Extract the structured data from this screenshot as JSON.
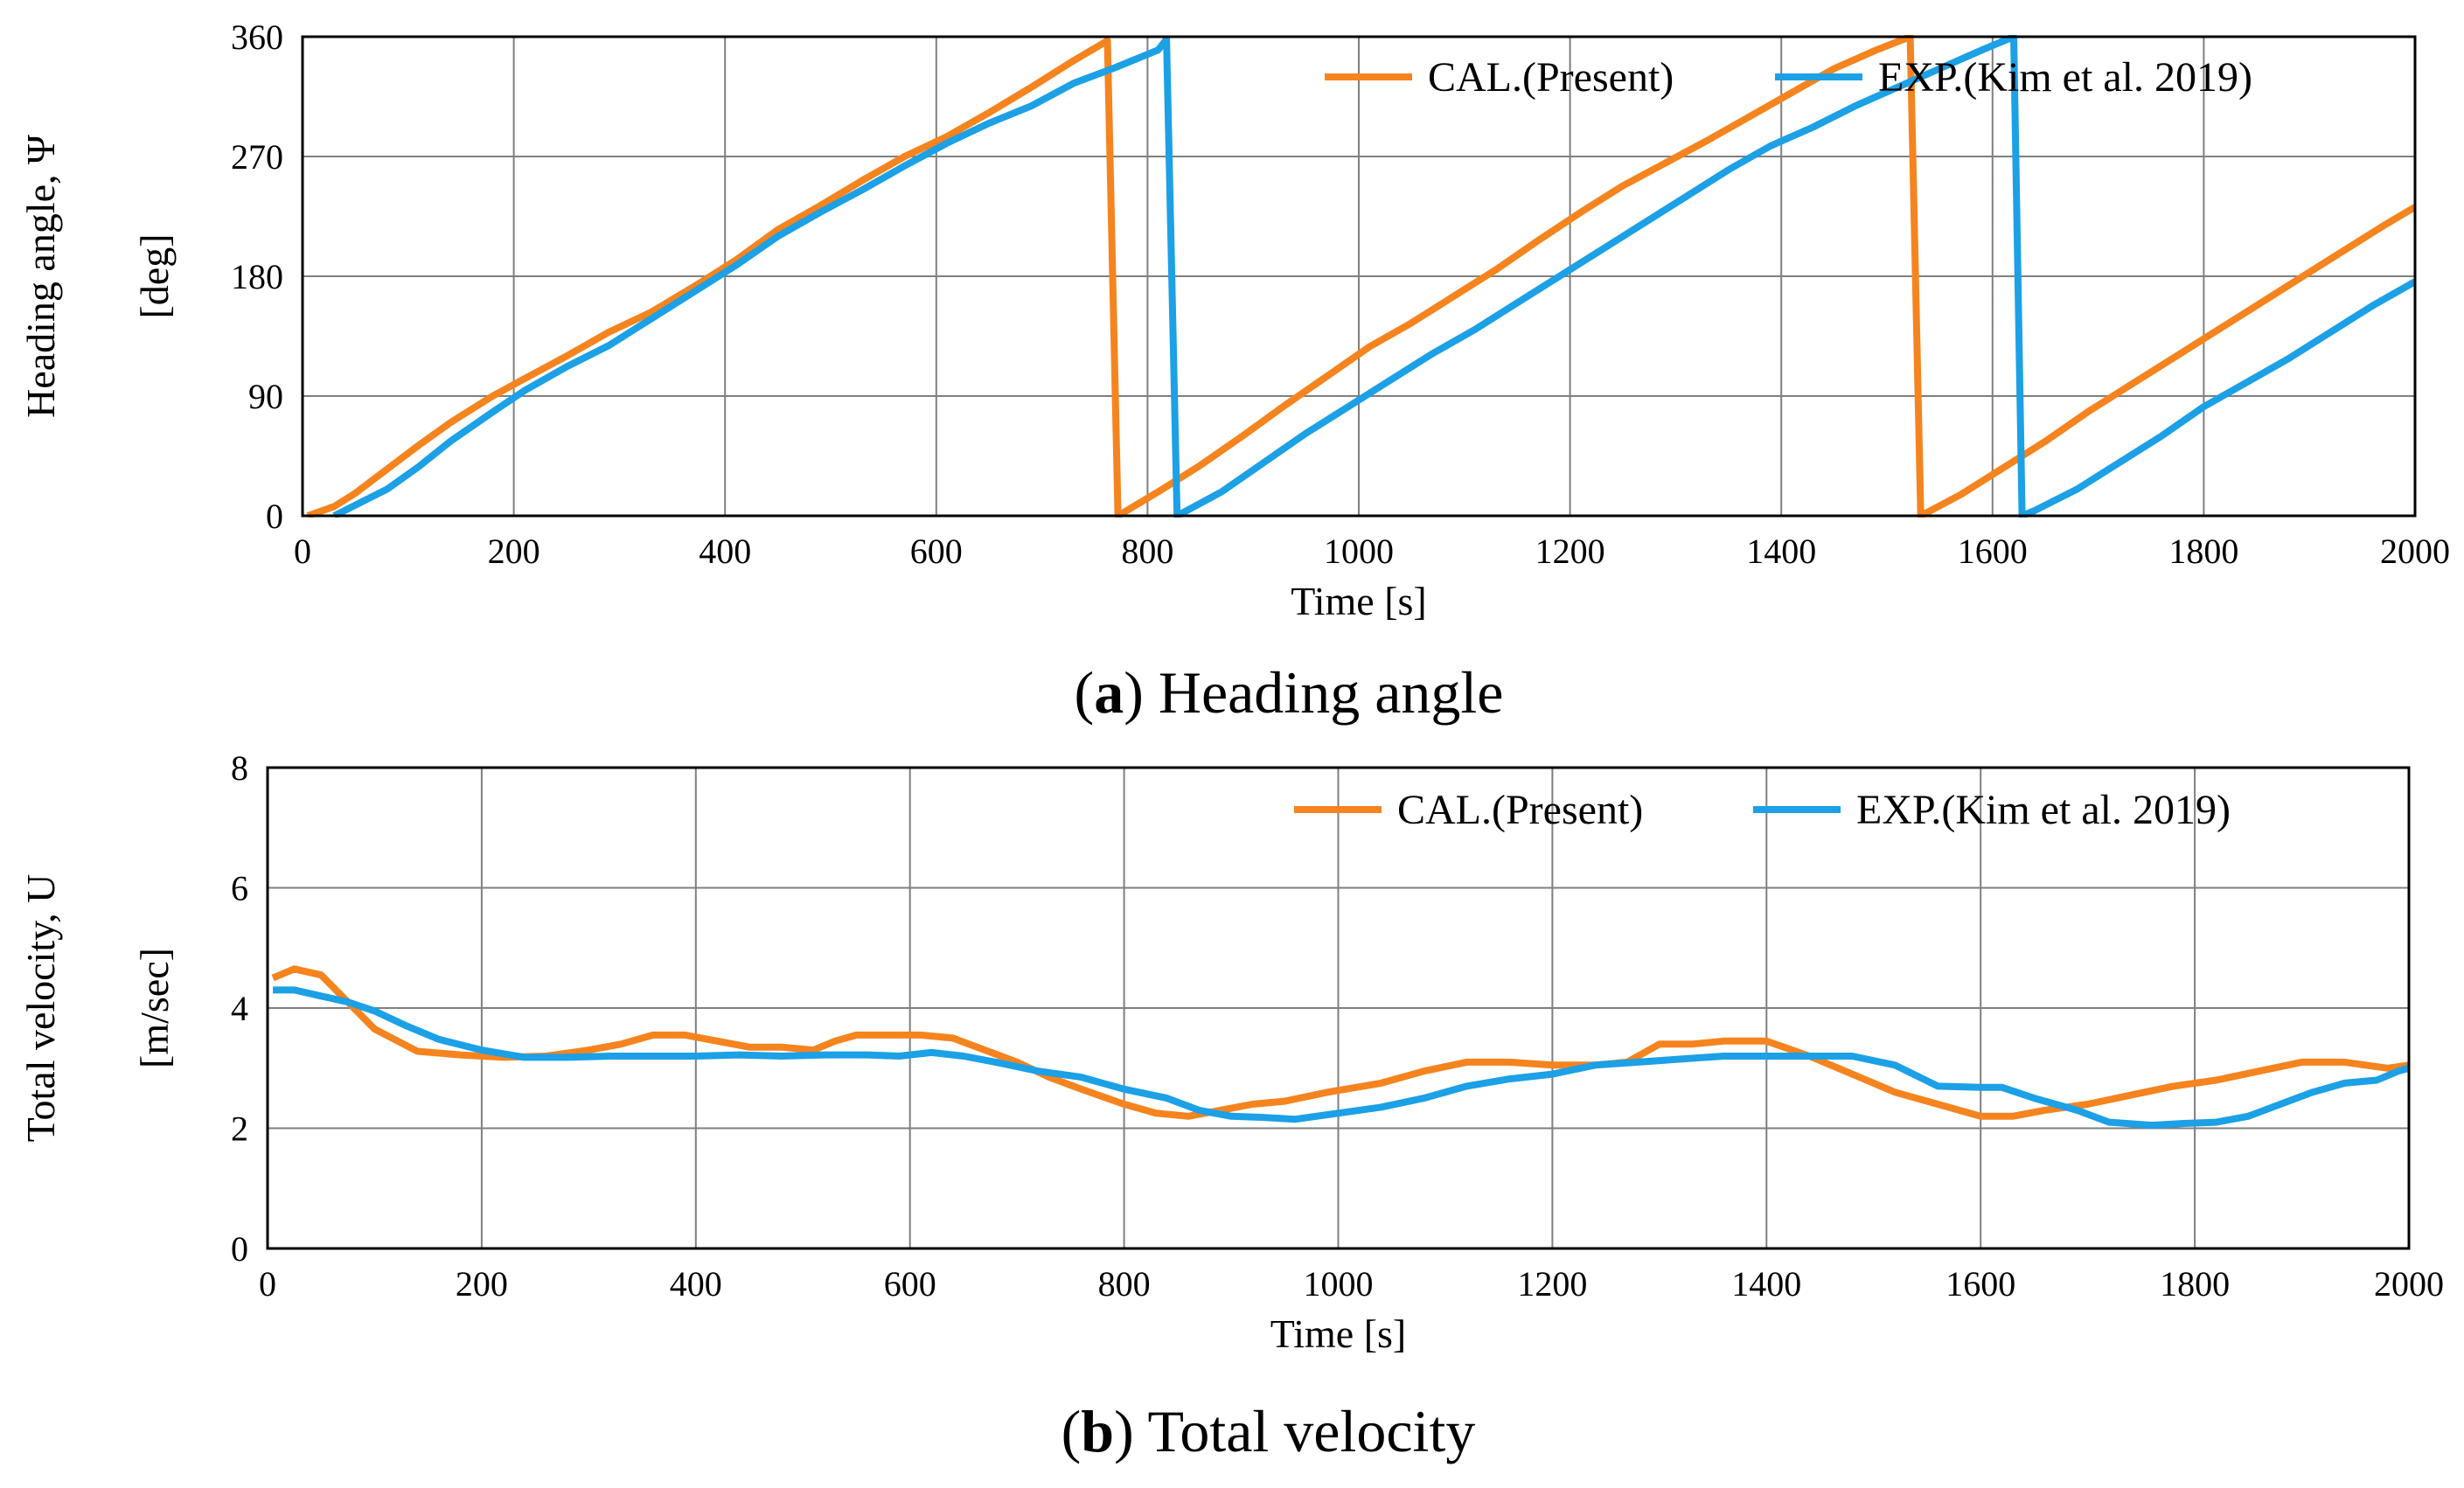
{
  "colors": {
    "cal": "#f5841f",
    "exp": "#1ca0e6",
    "grid": "#7f7f7f",
    "axis": "#000000"
  },
  "chart_data": [
    {
      "type": "line",
      "id": "heading",
      "caption_prefix": "(",
      "caption_letter": "a",
      "caption_text": ") Heading angle",
      "xlabel": "Time [s]",
      "ylabel_line1": "Heading angle, Ψ",
      "ylabel_line2": "[deg]",
      "xlim": [
        0,
        2000
      ],
      "ylim": [
        0,
        360
      ],
      "xticks": [
        0,
        200,
        400,
        600,
        800,
        1000,
        1200,
        1400,
        1600,
        1800,
        2000
      ],
      "yticks": [
        0,
        90,
        180,
        270,
        360
      ],
      "grid": true,
      "legend_position": "top-right",
      "series": [
        {
          "name": "CAL.(Present)",
          "color_key": "cal",
          "x": [
            5,
            30,
            50,
            80,
            110,
            140,
            180,
            210,
            250,
            290,
            330,
            370,
            410,
            450,
            490,
            530,
            570,
            610,
            650,
            690,
            730,
            762,
            772,
            810,
            850,
            890,
            930,
            970,
            1010,
            1050,
            1090,
            1130,
            1170,
            1210,
            1250,
            1290,
            1330,
            1370,
            1410,
            1450,
            1490,
            1522,
            1532,
            1570,
            1610,
            1650,
            1690,
            1730,
            1770,
            1810,
            1850,
            1890,
            1930,
            1970,
            2000
          ],
          "y": [
            0,
            7,
            17,
            35,
            53,
            70,
            90,
            103,
            120,
            138,
            153,
            172,
            192,
            215,
            233,
            252,
            270,
            285,
            303,
            322,
            342,
            357,
            0,
            18,
            38,
            60,
            83,
            105,
            127,
            145,
            165,
            185,
            207,
            228,
            248,
            265,
            282,
            300,
            318,
            336,
            350,
            360,
            0,
            16,
            36,
            56,
            78,
            98,
            118,
            138,
            158,
            178,
            198,
            218,
            232
          ]
        },
        {
          "name": "EXP.(Kim et al. 2019)",
          "color_key": "exp",
          "x": [
            30,
            50,
            80,
            110,
            140,
            180,
            210,
            250,
            290,
            330,
            370,
            410,
            450,
            490,
            530,
            570,
            610,
            650,
            690,
            730,
            770,
            810,
            818,
            828,
            870,
            910,
            950,
            990,
            1030,
            1070,
            1110,
            1150,
            1190,
            1230,
            1270,
            1310,
            1350,
            1390,
            1430,
            1470,
            1510,
            1550,
            1590,
            1620,
            1628,
            1640,
            1680,
            1720,
            1760,
            1800,
            1840,
            1880,
            1920,
            1960,
            2000
          ],
          "y": [
            0,
            8,
            20,
            37,
            56,
            78,
            94,
            112,
            128,
            148,
            168,
            188,
            210,
            228,
            245,
            263,
            280,
            295,
            308,
            325,
            337,
            350,
            358,
            0,
            18,
            40,
            62,
            82,
            102,
            122,
            140,
            160,
            180,
            200,
            220,
            240,
            260,
            278,
            292,
            308,
            322,
            336,
            350,
            360,
            0,
            4,
            20,
            40,
            60,
            82,
            100,
            118,
            138,
            158,
            176
          ]
        }
      ]
    },
    {
      "type": "line",
      "id": "velocity",
      "caption_prefix": "(",
      "caption_letter": "b",
      "caption_text": ") Total velocity",
      "xlabel": "Time [s]",
      "ylabel_line1": "Total velocity, U",
      "ylabel_line2": "[m/sec]",
      "xlim": [
        0,
        2000
      ],
      "ylim": [
        0,
        8
      ],
      "xticks": [
        0,
        200,
        400,
        600,
        800,
        1000,
        1200,
        1400,
        1600,
        1800,
        2000
      ],
      "yticks": [
        0,
        2,
        4,
        6,
        8
      ],
      "grid": true,
      "legend_position": "top-right",
      "series": [
        {
          "name": "CAL.(Present)",
          "color_key": "cal",
          "x": [
            5,
            25,
            50,
            75,
            100,
            140,
            180,
            220,
            260,
            300,
            330,
            360,
            390,
            420,
            450,
            480,
            510,
            530,
            550,
            580,
            610,
            640,
            670,
            700,
            730,
            760,
            800,
            830,
            860,
            890,
            920,
            950,
            990,
            1040,
            1080,
            1120,
            1160,
            1200,
            1240,
            1270,
            1300,
            1330,
            1360,
            1400,
            1440,
            1480,
            1520,
            1560,
            1600,
            1630,
            1660,
            1700,
            1740,
            1780,
            1820,
            1860,
            1900,
            1940,
            1980,
            2000
          ],
          "y": [
            4.5,
            4.65,
            4.55,
            4.1,
            3.65,
            3.28,
            3.22,
            3.18,
            3.2,
            3.3,
            3.4,
            3.55,
            3.55,
            3.45,
            3.35,
            3.35,
            3.3,
            3.45,
            3.55,
            3.55,
            3.55,
            3.5,
            3.3,
            3.1,
            2.85,
            2.65,
            2.4,
            2.25,
            2.2,
            2.3,
            2.4,
            2.45,
            2.6,
            2.75,
            2.95,
            3.1,
            3.1,
            3.05,
            3.05,
            3.1,
            3.4,
            3.4,
            3.45,
            3.45,
            3.2,
            2.9,
            2.6,
            2.4,
            2.2,
            2.2,
            2.3,
            2.4,
            2.55,
            2.7,
            2.8,
            2.95,
            3.1,
            3.1,
            3.0,
            3.05
          ]
        },
        {
          "name": "EXP.(Kim et al. 2019)",
          "color_key": "exp",
          "x": [
            5,
            25,
            50,
            75,
            100,
            130,
            160,
            200,
            240,
            280,
            320,
            360,
            400,
            440,
            480,
            520,
            560,
            590,
            620,
            650,
            680,
            720,
            760,
            800,
            840,
            870,
            900,
            930,
            960,
            1000,
            1040,
            1080,
            1120,
            1160,
            1200,
            1240,
            1280,
            1320,
            1360,
            1400,
            1440,
            1480,
            1520,
            1560,
            1600,
            1620,
            1650,
            1690,
            1720,
            1760,
            1790,
            1820,
            1850,
            1880,
            1910,
            1940,
            1970,
            1990,
            2000
          ],
          "y": [
            4.3,
            4.3,
            4.2,
            4.1,
            3.95,
            3.7,
            3.48,
            3.3,
            3.18,
            3.18,
            3.2,
            3.2,
            3.2,
            3.22,
            3.2,
            3.22,
            3.22,
            3.2,
            3.26,
            3.2,
            3.1,
            2.95,
            2.85,
            2.65,
            2.5,
            2.3,
            2.2,
            2.18,
            2.15,
            2.25,
            2.35,
            2.5,
            2.7,
            2.82,
            2.9,
            3.05,
            3.1,
            3.15,
            3.2,
            3.2,
            3.2,
            3.2,
            3.05,
            2.7,
            2.68,
            2.68,
            2.5,
            2.3,
            2.1,
            2.05,
            2.08,
            2.1,
            2.2,
            2.4,
            2.6,
            2.75,
            2.8,
            2.95,
            3.0
          ]
        }
      ]
    }
  ]
}
